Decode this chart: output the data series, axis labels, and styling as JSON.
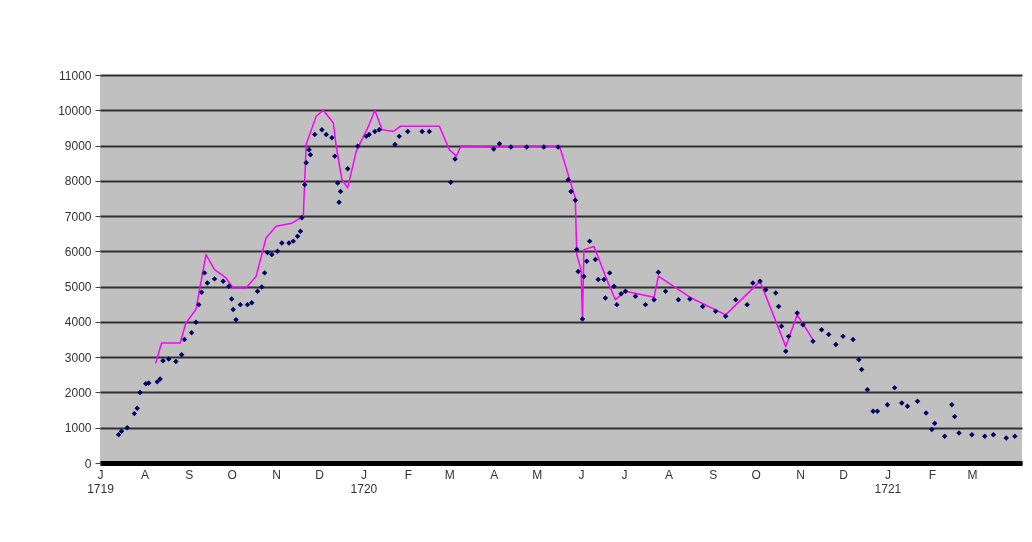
{
  "chart_data": {
    "type": "scatter",
    "xlim": [
      "1719-07-01",
      "1721-04-05"
    ],
    "ylim": [
      0,
      11000
    ],
    "yticks": [
      0,
      1000,
      2000,
      3000,
      4000,
      5000,
      6000,
      7000,
      8000,
      9000,
      10000,
      11000
    ],
    "xticks": [
      {
        "value": "1719-07-01",
        "label": "J\n1719"
      },
      {
        "value": "1719-08-01",
        "label": "A"
      },
      {
        "value": "1719-09-01",
        "label": "S"
      },
      {
        "value": "1719-10-01",
        "label": "O"
      },
      {
        "value": "1719-11-01",
        "label": "N"
      },
      {
        "value": "1719-12-01",
        "label": "D"
      },
      {
        "value": "1720-01-01",
        "label": "J\n1720"
      },
      {
        "value": "1720-02-01",
        "label": "F"
      },
      {
        "value": "1720-03-01",
        "label": "M"
      },
      {
        "value": "1720-04-01",
        "label": "A"
      },
      {
        "value": "1720-05-01",
        "label": "M"
      },
      {
        "value": "1720-06-01",
        "label": "J"
      },
      {
        "value": "1720-07-01",
        "label": "J"
      },
      {
        "value": "1720-08-01",
        "label": "A"
      },
      {
        "value": "1720-09-01",
        "label": "S"
      },
      {
        "value": "1720-10-01",
        "label": "O"
      },
      {
        "value": "1720-11-01",
        "label": "N"
      },
      {
        "value": "1720-12-01",
        "label": "D"
      },
      {
        "value": "1721-01-01",
        "label": "J\n1721"
      },
      {
        "value": "1721-02-01",
        "label": "F"
      },
      {
        "value": "1721-03-01",
        "label": "M"
      }
    ],
    "grid": "y",
    "series": [
      {
        "type": "line",
        "color": "#ff00ff",
        "line_style": "solid",
        "x": [
          "1719-08-09",
          "1719-08-13",
          "1719-08-26",
          "1719-08-30",
          "1719-09-06",
          "1719-09-13",
          "1719-09-19",
          "1719-09-27",
          "1719-10-02",
          "1719-10-11",
          "1719-10-18",
          "1719-10-25",
          "1719-11-01",
          "1719-11-12",
          "1719-11-20",
          "1719-11-22",
          "1719-11-29",
          "1719-12-04",
          "1719-12-11",
          "1719-12-13",
          "1719-12-17",
          "1719-12-21",
          "1719-12-27",
          "1720-01-04",
          "1720-01-09",
          "1720-01-14",
          "1720-01-22",
          "1720-01-27",
          "1720-02-11",
          "1720-02-23",
          "1720-03-01",
          "1720-03-06",
          "1720-03-09",
          "1720-03-31",
          "1720-05-17",
          "1720-05-28",
          "1720-05-29",
          "1720-06-01",
          "1720-06-02",
          "1720-06-03",
          "1720-06-10",
          "1720-06-20",
          "1720-06-25",
          "1720-07-02",
          "1720-07-22",
          "1720-07-25",
          "1720-08-16",
          "1720-09-10",
          "1720-10-04",
          "1720-10-22",
          "1720-10-30",
          "1720-11-10"
        ],
        "values": [
          2840,
          3400,
          3400,
          3970,
          4350,
          5910,
          5480,
          5250,
          4960,
          4960,
          5290,
          6380,
          6710,
          6800,
          6990,
          9030,
          9830,
          10000,
          9640,
          8980,
          8030,
          7800,
          8840,
          9500,
          10000,
          9450,
          9400,
          9550,
          9550,
          9550,
          8880,
          8700,
          8980,
          8960,
          8980,
          7510,
          5910,
          5480,
          4080,
          6050,
          6140,
          5100,
          4630,
          4870,
          4700,
          5300,
          4700,
          4200,
          5150,
          3300,
          4200,
          3500
        ]
      },
      {
        "type": "scatter",
        "color": "#000066",
        "marker": "diamond",
        "x": [
          "1719-07-14",
          "1719-07-16",
          "1719-07-20",
          "1719-07-25",
          "1719-07-27",
          "1719-07-29",
          "1719-08-02",
          "1719-08-04",
          "1719-08-10",
          "1719-08-12",
          "1719-08-14",
          "1719-08-18",
          "1719-08-23",
          "1719-08-27",
          "1719-08-29",
          "1719-09-03",
          "1719-09-06",
          "1719-09-08",
          "1719-09-10",
          "1719-09-12",
          "1719-09-14",
          "1719-09-19",
          "1719-09-25",
          "1719-09-29",
          "1719-10-01",
          "1719-10-02",
          "1719-10-04",
          "1719-10-07",
          "1719-10-12",
          "1719-10-15",
          "1719-10-19",
          "1719-10-22",
          "1719-10-24",
          "1719-10-26",
          "1719-10-29",
          "1719-11-02",
          "1719-11-05",
          "1719-11-10",
          "1719-11-13",
          "1719-11-16",
          "1719-11-18",
          "1719-11-19",
          "1719-11-21",
          "1719-11-22",
          "1719-11-24",
          "1719-11-25",
          "1719-11-28",
          "1719-12-03",
          "1719-12-06",
          "1719-12-10",
          "1719-12-12",
          "1719-12-14",
          "1719-12-15",
          "1719-12-16",
          "1719-12-21",
          "1719-12-28",
          "1720-01-03",
          "1720-01-05",
          "1720-01-09",
          "1720-01-12",
          "1720-01-23",
          "1720-01-26",
          "1720-02-01",
          "1720-02-11",
          "1720-02-16",
          "1720-03-02",
          "1720-03-05",
          "1720-04-01",
          "1720-04-05",
          "1720-04-13",
          "1720-04-24",
          "1720-05-06",
          "1720-05-16",
          "1720-05-23",
          "1720-05-25",
          "1720-05-28",
          "1720-05-29",
          "1720-05-30",
          "1720-06-02",
          "1720-06-03",
          "1720-06-05",
          "1720-06-07",
          "1720-06-11",
          "1720-06-13",
          "1720-06-17",
          "1720-06-18",
          "1720-06-21",
          "1720-06-24",
          "1720-06-26",
          "1720-06-29",
          "1720-07-02",
          "1720-07-09",
          "1720-07-16",
          "1720-07-22",
          "1720-07-25",
          "1720-07-30",
          "1720-08-08",
          "1720-08-16",
          "1720-08-25",
          "1720-09-03",
          "1720-09-10",
          "1720-09-17",
          "1720-09-25",
          "1720-09-29",
          "1720-10-04",
          "1720-10-08",
          "1720-10-15",
          "1720-10-17",
          "1720-10-19",
          "1720-10-22",
          "1720-10-24",
          "1720-10-30",
          "1720-11-03",
          "1720-11-10",
          "1720-11-16",
          "1720-11-21",
          "1720-11-26",
          "1720-12-01",
          "1720-12-08",
          "1720-12-12",
          "1720-12-14",
          "1720-12-18",
          "1720-12-22",
          "1720-12-25",
          "1721-01-01",
          "1721-01-06",
          "1721-01-11",
          "1721-01-15",
          "1721-01-22",
          "1721-01-28",
          "1721-02-01",
          "1721-02-03",
          "1721-02-10",
          "1721-02-15",
          "1721-02-17",
          "1721-02-20",
          "1721-03-01",
          "1721-03-10",
          "1721-03-16",
          "1721-03-25",
          "1721-03-31"
        ],
        "values": [
          800,
          900,
          1000,
          1400,
          1550,
          2000,
          2250,
          2270,
          2300,
          2380,
          2900,
          2950,
          2880,
          3070,
          3500,
          3690,
          3990,
          4490,
          4840,
          5390,
          5100,
          5220,
          5150,
          5010,
          4650,
          4350,
          4060,
          4490,
          4490,
          4540,
          4870,
          4990,
          5390,
          5970,
          5910,
          6000,
          6240,
          6240,
          6290,
          6430,
          6570,
          6950,
          7890,
          8510,
          8880,
          8740,
          9310,
          9450,
          9310,
          9220,
          8700,
          7940,
          7390,
          7700,
          8340,
          8980,
          9260,
          9310,
          9400,
          9450,
          9030,
          9260,
          9400,
          9400,
          9400,
          7960,
          8620,
          8900,
          9050,
          8960,
          8960,
          8960,
          8960,
          8030,
          7700,
          7450,
          6050,
          5430,
          4080,
          5290,
          5720,
          6290,
          5770,
          5200,
          5200,
          4680,
          5390,
          5010,
          4490,
          4800,
          4870,
          4730,
          4490,
          4630,
          5410,
          4870,
          4630,
          4650,
          4440,
          4300,
          4160,
          4630,
          4490,
          5100,
          5150,
          4910,
          4820,
          4440,
          3880,
          3170,
          3590,
          4250,
          3920,
          3450,
          3780,
          3640,
          3360,
          3590,
          3500,
          2930,
          2650,
          2080,
          1470,
          1470,
          1650,
          2130,
          1700,
          1610,
          1750,
          1420,
          950,
          1130,
          760,
          1650,
          1320,
          850,
          800,
          760,
          800,
          710,
          760
        ]
      }
    ]
  }
}
